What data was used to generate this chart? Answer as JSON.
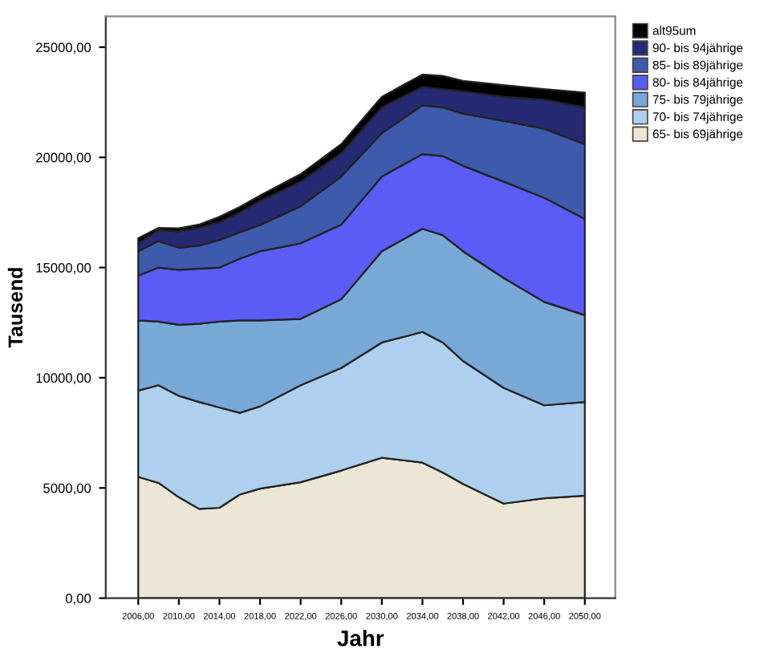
{
  "chart_data": {
    "type": "area",
    "stacked": true,
    "xlabel": "Jahr",
    "ylabel": "Tausend",
    "x": [
      2006,
      2008,
      2010,
      2012,
      2014,
      2016,
      2018,
      2022,
      2026,
      2030,
      2034,
      2036,
      2038,
      2042,
      2046,
      2050
    ],
    "series": [
      {
        "name": "65- bis 69jährige",
        "color": "#ebe6d6",
        "values": [
          5500,
          5230,
          4580,
          4050,
          4100,
          4700,
          4970,
          5260,
          5790,
          6370,
          6150,
          5700,
          5180,
          4290,
          4530,
          4650
        ]
      },
      {
        "name": "70- bis 74jährige",
        "color": "#aecfee",
        "values": [
          3920,
          4430,
          4600,
          4850,
          4550,
          3710,
          3730,
          4400,
          4650,
          5230,
          5930,
          5900,
          5580,
          5250,
          4220,
          4250
        ]
      },
      {
        "name": "75- bis 79jährige",
        "color": "#78a8d6",
        "values": [
          3180,
          2890,
          3220,
          3550,
          3900,
          4190,
          3900,
          3010,
          3120,
          4140,
          4680,
          4870,
          4980,
          4990,
          4690,
          3940
        ]
      },
      {
        "name": "80- bis 84jährige",
        "color": "#5a5cf5",
        "values": [
          2040,
          2450,
          2500,
          2500,
          2450,
          2800,
          3140,
          3430,
          3390,
          3390,
          3390,
          3590,
          3880,
          4370,
          4730,
          4360
        ]
      },
      {
        "name": "85- bis 89jährige",
        "color": "#3d5aad",
        "values": [
          1100,
          1200,
          1000,
          1050,
          1250,
          1200,
          1190,
          1680,
          2180,
          1970,
          2210,
          2210,
          2360,
          2760,
          3130,
          3400
        ]
      },
      {
        "name": "90- bis 94jährige",
        "color": "#252a72",
        "values": [
          360,
          500,
          740,
          800,
          810,
          900,
          1090,
          1120,
          1070,
          1170,
          840,
          830,
          1020,
          1090,
          1320,
          1670
        ]
      },
      {
        "name": "alt95um",
        "color": "#000000",
        "values": [
          230,
          100,
          140,
          150,
          240,
          250,
          250,
          340,
          400,
          480,
          560,
          600,
          470,
          530,
          480,
          670
        ]
      }
    ],
    "xlim": [
      2002.8,
      2053
    ],
    "xticks": [
      {
        "value": 2006,
        "label": "2006,00"
      },
      {
        "value": 2010,
        "label": "2010,00"
      },
      {
        "value": 2014,
        "label": "2014,00"
      },
      {
        "value": 2018,
        "label": "2018,00"
      },
      {
        "value": 2022,
        "label": "2022,00"
      },
      {
        "value": 2026,
        "label": "2026,00"
      },
      {
        "value": 2030,
        "label": "2030,00"
      },
      {
        "value": 2034,
        "label": "2034,00"
      },
      {
        "value": 2038,
        "label": "2038,00"
      },
      {
        "value": 2042,
        "label": "2042,00"
      },
      {
        "value": 2046,
        "label": "2046,00"
      },
      {
        "value": 2050,
        "label": "2050,00"
      }
    ],
    "ylim": [
      0,
      26400
    ],
    "yticks": [
      {
        "value": 0,
        "label": "0,00"
      },
      {
        "value": 5000,
        "label": "5000,00"
      },
      {
        "value": 10000,
        "label": "10000,00"
      },
      {
        "value": 15000,
        "label": "15000,00"
      },
      {
        "value": 20000,
        "label": "20000,00"
      },
      {
        "value": 25000,
        "label": "25000,00"
      }
    ],
    "grid": false,
    "legend": "top right"
  }
}
